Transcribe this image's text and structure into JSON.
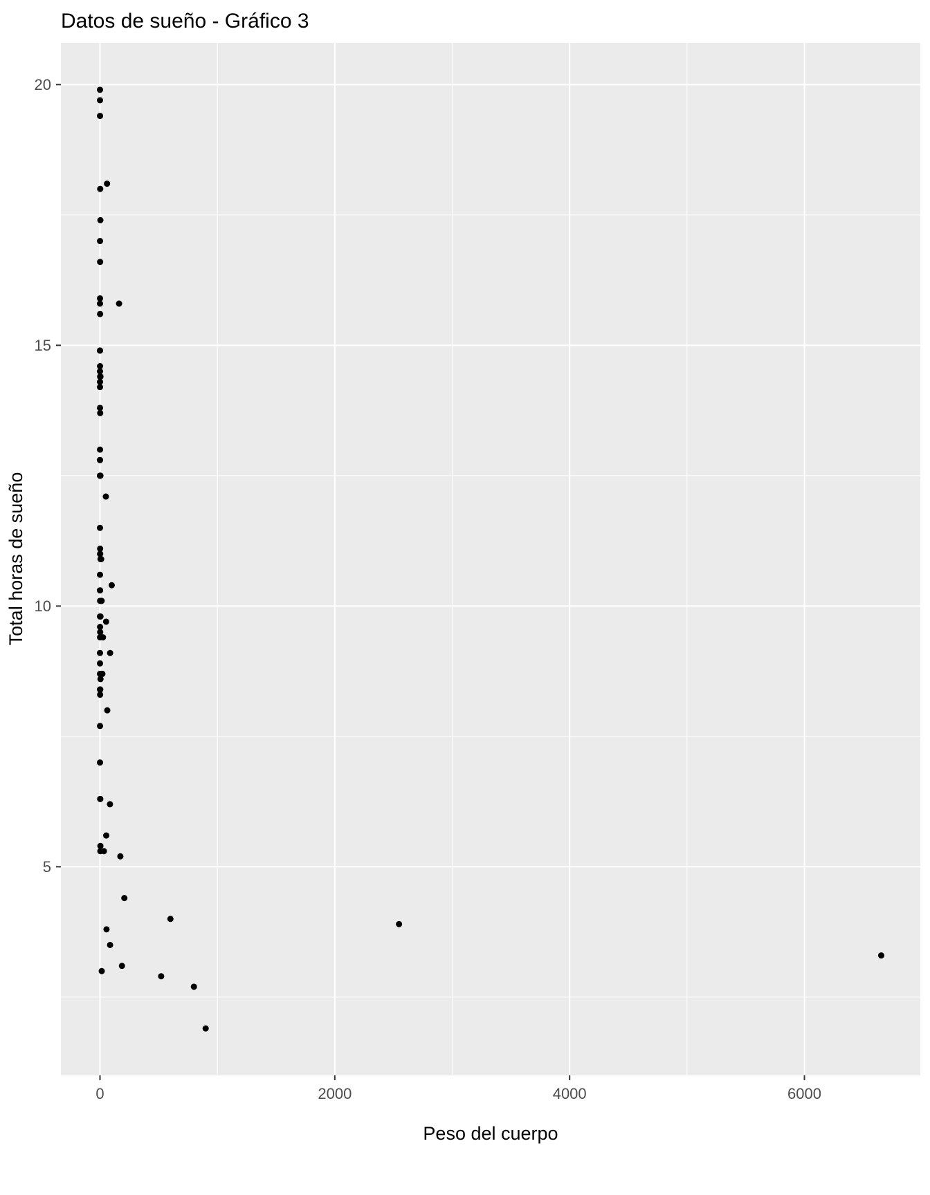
{
  "chart_data": {
    "type": "scatter",
    "title": "Datos de sueño - Gráfico 3",
    "xlabel": "Peso del cuerpo",
    "ylabel": "Total horas de sueño",
    "xlim": [
      -333,
      6987
    ],
    "ylim": [
      1.0,
      20.8
    ],
    "x_major_ticks": [
      0,
      2000,
      4000,
      6000
    ],
    "x_minor_ticks": [
      1000,
      3000,
      5000
    ],
    "y_major_ticks": [
      5,
      10,
      15,
      20
    ],
    "y_minor_ticks": [
      2.5,
      7.5,
      12.5,
      17.5
    ],
    "grid": true,
    "legend": false,
    "panel_background_color": "#EBEBEB",
    "grid_color": "#FFFFFF",
    "point_color": "#000000",
    "tick_label_color": "#4D4D4D",
    "tick_mark_color": "#333333",
    "points": [
      [
        50,
        12.1
      ],
      [
        0.48,
        17.0
      ],
      [
        1.35,
        14.4
      ],
      [
        0.019,
        14.9
      ],
      [
        600,
        4.0
      ],
      [
        3.85,
        14.4
      ],
      [
        20.49,
        8.7
      ],
      [
        0.045,
        7.0
      ],
      [
        14,
        10.1
      ],
      [
        14.8,
        3.0
      ],
      [
        33.5,
        5.3
      ],
      [
        0.728,
        9.4
      ],
      [
        4.75,
        10.9
      ],
      [
        0.42,
        12.5
      ],
      [
        0.06,
        10.3
      ],
      [
        1.0,
        8.3
      ],
      [
        0.005,
        9.1
      ],
      [
        3.5,
        17.4
      ],
      [
        2.95,
        5.3
      ],
      [
        1.7,
        18.0
      ],
      [
        2547,
        3.9
      ],
      [
        0.023,
        19.7
      ],
      [
        521,
        2.9
      ],
      [
        187,
        3.1
      ],
      [
        0.77,
        10.1
      ],
      [
        10,
        10.9
      ],
      [
        0.071,
        14.9
      ],
      [
        3.3,
        12.5
      ],
      [
        0.2,
        9.8
      ],
      [
        899.995,
        1.9
      ],
      [
        800,
        2.7
      ],
      [
        85,
        6.2
      ],
      [
        2.625,
        6.3
      ],
      [
        62,
        8.0
      ],
      [
        1.67,
        9.5
      ],
      [
        6654,
        3.3
      ],
      [
        0.37,
        19.4
      ],
      [
        6.8,
        10.1
      ],
      [
        0.053,
        14.2
      ],
      [
        0.12,
        14.3
      ],
      [
        0.035,
        12.8
      ],
      [
        0.022,
        12.5
      ],
      [
        0.01,
        19.9
      ],
      [
        0.266,
        14.6
      ],
      [
        1.4,
        11.0
      ],
      [
        0.21,
        7.7
      ],
      [
        0.028,
        14.5
      ],
      [
        2.5,
        8.4
      ],
      [
        55.5,
        3.8
      ],
      [
        52.2,
        9.7
      ],
      [
        162.564,
        15.8
      ],
      [
        100,
        10.4
      ],
      [
        0.9,
        15.6
      ],
      [
        0.104,
        8.9
      ],
      [
        173.33,
        5.2
      ],
      [
        1.41,
        6.3
      ],
      [
        3.38,
        12.5
      ],
      [
        0.044,
        8.7
      ],
      [
        0.743,
        9.6
      ],
      [
        0.075,
        8.4
      ],
      [
        60,
        18.1
      ],
      [
        3.6,
        5.4
      ],
      [
        0.32,
        13.0
      ],
      [
        0.122,
        10.6
      ],
      [
        0.048,
        12.8
      ],
      [
        86.25,
        9.1
      ],
      [
        4.5,
        8.6
      ],
      [
        207.501,
        4.4
      ],
      [
        1.62,
        13.7
      ],
      [
        1.1,
        11.1
      ],
      [
        25.235,
        9.4
      ],
      [
        0.55,
        10.3
      ],
      [
        1.0,
        11.0
      ],
      [
        0.021,
        11.5
      ],
      [
        86,
        3.5
      ],
      [
        53.18,
        5.6
      ],
      [
        0.92,
        16.6
      ],
      [
        0.101,
        13.8
      ],
      [
        0.205,
        15.9
      ],
      [
        0.112,
        15.8
      ],
      [
        4.23,
        9.8
      ]
    ]
  }
}
